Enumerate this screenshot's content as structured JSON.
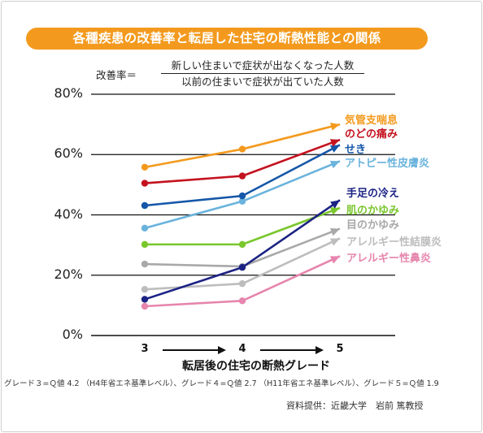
{
  "title": "各種疾患の改善率と転居した住宅の断熱性能との関係",
  "formula": {
    "lhs": "改善率＝",
    "numerator": "新しい住まいで症状が出なくなった人数",
    "denominator": "以前の住まいで症状が出ていた人数"
  },
  "footnote": "グレード３=Ｑ値 4.2 （H4年省エネ基準レベル）、グレード４=Ｑ値 2.7 （H11年省エネ基準レベル）、グレード５=Ｑ値 1.9",
  "credit": "資料提供：近畿大学　岩前 篤教授",
  "colors": {
    "title_pill": "#f39a1e",
    "axis": "#111111"
  },
  "chart_data": {
    "type": "line",
    "title": "各種疾患の改善率と転居した住宅の断熱性能との関係",
    "xlabel": "転居後の住宅の断熱グレード",
    "ylabel": "",
    "categories": [
      "3",
      "4",
      "5"
    ],
    "ylim": [
      0,
      80
    ],
    "yticks": [
      0,
      20,
      40,
      60,
      80
    ],
    "ytick_labels": [
      "0%",
      "20%",
      "40%",
      "60%",
      "80%"
    ],
    "grid": true,
    "legend_placement": "right, at line ends",
    "series": [
      {
        "name": "気管支喘息",
        "color": "#f39a1e",
        "values": [
          55.8,
          61.8,
          70.0
        ]
      },
      {
        "name": "のどの痛み",
        "color": "#c4121f",
        "values": [
          50.5,
          52.9,
          64.9
        ]
      },
      {
        "name": "せき",
        "color": "#1557a8",
        "values": [
          43.1,
          46.3,
          63.2
        ]
      },
      {
        "name": "アトピー性皮膚炎",
        "color": "#6ab3dc",
        "values": [
          35.6,
          44.5,
          57.8
        ]
      },
      {
        "name": "手足の冷え",
        "color": "#1c2384",
        "values": [
          12.0,
          22.6,
          44.9
        ]
      },
      {
        "name": "肌のかゆみ",
        "color": "#7ac72d",
        "values": [
          30.2,
          30.2,
          42.3
        ]
      },
      {
        "name": "目のかゆみ",
        "color": "#a9a9a9",
        "values": [
          23.7,
          22.9,
          35.4
        ]
      },
      {
        "name": "アレルギー性結膜炎",
        "color": "#bdbdbd",
        "values": [
          15.3,
          17.2,
          32.2
        ]
      },
      {
        "name": "アレルギー性鼻炎",
        "color": "#e685ad",
        "values": [
          9.7,
          11.5,
          26.3
        ]
      }
    ]
  }
}
